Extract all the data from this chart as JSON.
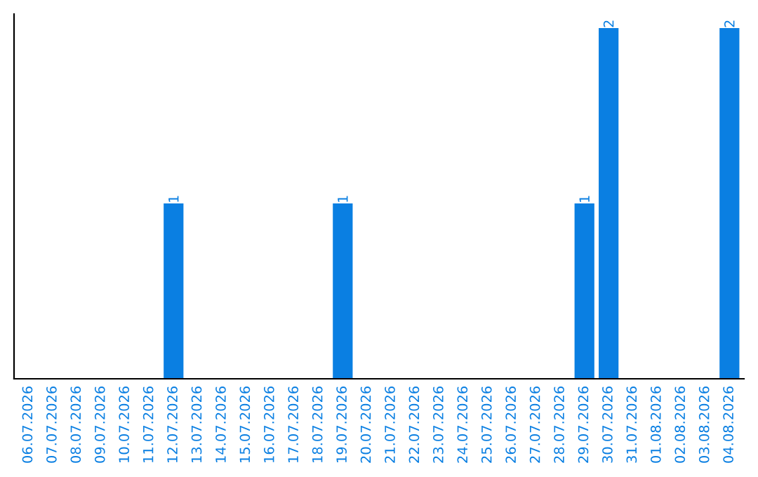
{
  "chart_data": {
    "type": "bar",
    "categories": [
      "06.07.2026",
      "07.07.2026",
      "08.07.2026",
      "09.07.2026",
      "10.07.2026",
      "11.07.2026",
      "12.07.2026",
      "13.07.2026",
      "14.07.2026",
      "15.07.2026",
      "16.07.2026",
      "17.07.2026",
      "18.07.2026",
      "19.07.2026",
      "20.07.2026",
      "21.07.2026",
      "22.07.2026",
      "23.07.2026",
      "24.07.2026",
      "25.07.2026",
      "26.07.2026",
      "27.07.2026",
      "28.07.2026",
      "29.07.2026",
      "30.07.2026",
      "31.07.2026",
      "01.08.2026",
      "02.08.2026",
      "03.08.2026",
      "04.08.2026"
    ],
    "values": [
      0,
      0,
      0,
      0,
      0,
      0,
      1,
      0,
      0,
      0,
      0,
      0,
      0,
      1,
      0,
      0,
      0,
      0,
      0,
      0,
      0,
      0,
      0,
      1,
      2,
      0,
      0,
      0,
      0,
      2
    ],
    "value_labels": [
      null,
      null,
      null,
      null,
      null,
      null,
      "1",
      null,
      null,
      null,
      null,
      null,
      null,
      "1",
      null,
      null,
      null,
      null,
      null,
      null,
      null,
      null,
      null,
      "1",
      "2",
      null,
      null,
      null,
      null,
      "2"
    ],
    "color": "#0a7fe2",
    "tick_labels": "x",
    "grid": false,
    "legend": false
  }
}
